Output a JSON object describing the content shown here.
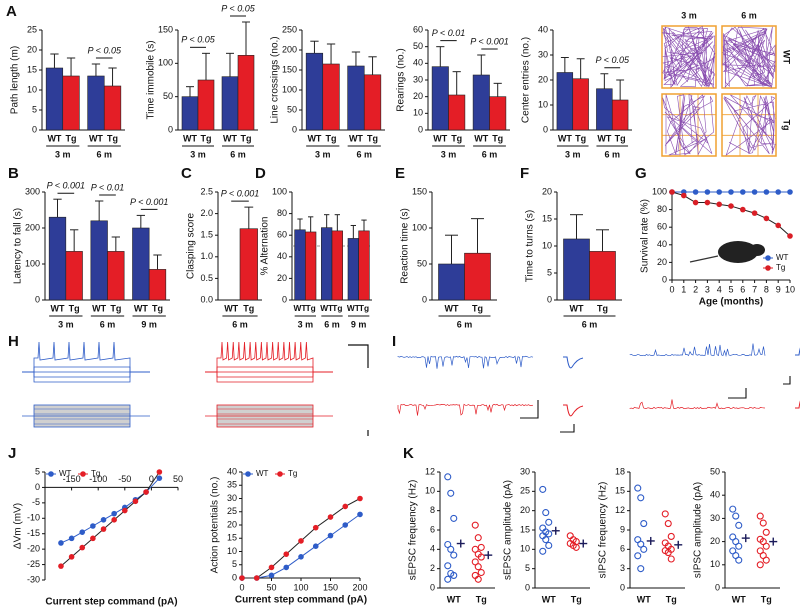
{
  "chart_data": [
    {
      "panel": "A",
      "type": "bar",
      "ylabel": "Path length (m)",
      "ylim": [
        0,
        25
      ],
      "yticks": [
        0,
        5,
        10,
        15,
        20,
        25
      ],
      "categories": [
        "3 m",
        "6 m"
      ],
      "series": [
        {
          "name": "WT",
          "color": "#2e3d98",
          "values": [
            15.5,
            13.5
          ],
          "errors": [
            3.5,
            3
          ]
        },
        {
          "name": "Tg",
          "color": "#e41e26",
          "values": [
            13.5,
            11
          ],
          "errors": [
            4.5,
            4.5
          ]
        }
      ],
      "annotations": [
        null,
        "P < 0.05"
      ]
    },
    {
      "type": "bar",
      "ylabel": "Time immobile (s)",
      "ylim": [
        0,
        150
      ],
      "yticks": [
        0,
        50,
        100,
        150
      ],
      "categories": [
        "3 m",
        "6 m"
      ],
      "series": [
        {
          "name": "WT",
          "color": "#2e3d98",
          "values": [
            50,
            80
          ],
          "errors": [
            15,
            35
          ]
        },
        {
          "name": "Tg",
          "color": "#e41e26",
          "values": [
            75,
            112
          ],
          "errors": [
            40,
            50
          ]
        }
      ],
      "annotations": [
        "P < 0.05",
        "P < 0.05"
      ]
    },
    {
      "type": "bar",
      "ylabel": "Line crossings (no.)",
      "ylim": [
        0,
        250
      ],
      "yticks": [
        0,
        50,
        100,
        150,
        200,
        250
      ],
      "categories": [
        "3 m",
        "6 m"
      ],
      "series": [
        {
          "name": "WT",
          "color": "#2e3d98",
          "values": [
            192,
            160
          ],
          "errors": [
            30,
            35
          ]
        },
        {
          "name": "Tg",
          "color": "#e41e26",
          "values": [
            165,
            138
          ],
          "errors": [
            50,
            45
          ]
        }
      ]
    },
    {
      "type": "bar",
      "ylabel": "Rearings (no.)",
      "ylim": [
        0,
        60
      ],
      "yticks": [
        0,
        10,
        20,
        30,
        40,
        50,
        60
      ],
      "categories": [
        "3 m",
        "6 m"
      ],
      "series": [
        {
          "name": "WT",
          "color": "#2e3d98",
          "values": [
            38,
            33
          ],
          "errors": [
            12,
            12
          ]
        },
        {
          "name": "Tg",
          "color": "#e41e26",
          "values": [
            21,
            20
          ],
          "errors": [
            14,
            8
          ]
        }
      ],
      "annotations": [
        "P < 0.01",
        "P < 0.001"
      ]
    },
    {
      "type": "bar",
      "ylabel": "Center entries (no.)",
      "ylim": [
        0,
        40
      ],
      "yticks": [
        0,
        10,
        20,
        30,
        40
      ],
      "categories": [
        "3 m",
        "6 m"
      ],
      "series": [
        {
          "name": "WT",
          "color": "#2e3d98",
          "values": [
            23,
            16.5
          ],
          "errors": [
            6,
            6
          ]
        },
        {
          "name": "Tg",
          "color": "#e41e26",
          "values": [
            20.5,
            12
          ],
          "errors": [
            8,
            8
          ]
        }
      ],
      "annotations": [
        null,
        "P < 0.05"
      ]
    },
    {
      "panel": "B",
      "type": "bar",
      "ylabel": "Latency to fall (s)",
      "ylim": [
        0,
        300
      ],
      "yticks": [
        0,
        100,
        200,
        300
      ],
      "categories": [
        "3 m",
        "6 m",
        "9 m"
      ],
      "series": [
        {
          "name": "WT",
          "color": "#2e3d98",
          "values": [
            230,
            220,
            200
          ],
          "errors": [
            50,
            55,
            35
          ]
        },
        {
          "name": "Tg",
          "color": "#e41e26",
          "values": [
            135,
            135,
            85
          ],
          "errors": [
            60,
            40,
            40
          ]
        }
      ],
      "annotations": [
        "P < 0.001",
        "P < 0.01",
        "P < 0.001"
      ]
    },
    {
      "panel": "C",
      "type": "bar",
      "ylabel": "Clasping score",
      "ylim": [
        0,
        2.5
      ],
      "yticks": [
        {
          "value": 0,
          "label": "0.0"
        },
        0.5,
        {
          "value": 1,
          "label": "1.0"
        },
        1.5,
        {
          "value": 2,
          "label": "2.0"
        },
        2.5
      ],
      "categories": [
        "6 m"
      ],
      "series": [
        {
          "name": "WT",
          "color": "#2e3d98",
          "values": [
            0
          ],
          "errors": [
            null
          ]
        },
        {
          "name": "Tg",
          "color": "#e41e26",
          "values": [
            1.65
          ],
          "errors": [
            0.5
          ]
        }
      ],
      "annotations": [
        "P < 0.001"
      ]
    },
    {
      "panel": "D",
      "type": "bar",
      "ylabel": "% Alternation",
      "ylim": [
        0,
        100
      ],
      "yticks": [
        0,
        20,
        40,
        60,
        80,
        100
      ],
      "categories": [
        "3 m",
        "6 m",
        "9 m"
      ],
      "reference_line": 50,
      "series": [
        {
          "name": "WT",
          "color": "#2e3d98",
          "values": [
            65,
            67,
            57
          ],
          "errors": [
            10,
            12,
            12
          ]
        },
        {
          "name": "Tg",
          "color": "#e41e26",
          "values": [
            63,
            64,
            64
          ],
          "errors": [
            14,
            15,
            10
          ]
        }
      ]
    },
    {
      "panel": "E",
      "type": "bar",
      "ylabel": "Reaction time (s)",
      "ylim": [
        0,
        150
      ],
      "yticks": [
        0,
        50,
        100,
        150
      ],
      "categories": [
        "6 m"
      ],
      "series": [
        {
          "name": "WT",
          "color": "#2e3d98",
          "values": [
            50
          ],
          "errors": [
            40
          ]
        },
        {
          "name": "Tg",
          "color": "#e41e26",
          "values": [
            65
          ],
          "errors": [
            48
          ]
        }
      ]
    },
    {
      "panel": "F",
      "type": "bar",
      "ylabel": "Time to turns (s)",
      "ylim": [
        0,
        20
      ],
      "yticks": [
        0,
        5,
        10,
        15,
        20
      ],
      "categories": [
        "6 m"
      ],
      "series": [
        {
          "name": "WT",
          "color": "#2e3d98",
          "values": [
            11.3
          ],
          "errors": [
            4.5
          ]
        },
        {
          "name": "Tg",
          "color": "#e41e26",
          "values": [
            9
          ],
          "errors": [
            4
          ]
        }
      ]
    },
    {
      "panel": "G",
      "type": "line",
      "ylabel": "Survival rate (%)",
      "xlabel": "Age (months)",
      "xlim": [
        0,
        10
      ],
      "xticks": [
        0,
        1,
        2,
        3,
        4,
        5,
        6,
        7,
        8,
        9,
        10
      ],
      "ylim": [
        0,
        100
      ],
      "yticks": [
        0,
        20,
        40,
        60,
        80,
        100
      ],
      "legend": "bottom-right",
      "x": [
        0,
        1,
        2,
        3,
        4,
        5,
        6,
        7,
        8,
        9,
        10
      ],
      "series": [
        {
          "name": "WT",
          "color": "#2e5cc8",
          "values": [
            100,
            100,
            100,
            100,
            100,
            100,
            100,
            100,
            100,
            100,
            100
          ]
        },
        {
          "name": "Tg",
          "color": "#d91e26",
          "values": [
            100,
            96,
            88,
            88,
            86,
            84,
            80,
            76,
            70,
            62,
            50
          ]
        }
      ]
    },
    {
      "panel": "J",
      "type": "line",
      "ylabel": "ΔVm (mV)",
      "xlabel": "Current step command (pA)",
      "xlim": [
        -200,
        50
      ],
      "xticks": [
        -150,
        -100,
        -50,
        0,
        50
      ],
      "ylim": [
        -30,
        5
      ],
      "yticks": [
        -30,
        -25,
        -20,
        -15,
        -10,
        -5,
        0,
        5
      ],
      "legend": "top-left",
      "x": [
        -170,
        -150,
        -130,
        -110,
        -90,
        -70,
        -50,
        -30,
        -10,
        15
      ],
      "series": [
        {
          "name": "WT",
          "color": "#2e5cc8",
          "values": [
            -18,
            -16.5,
            -14.5,
            -12.5,
            -10.5,
            -8.5,
            -6.5,
            -4,
            -1.5,
            3
          ]
        },
        {
          "name": "Tg",
          "color": "#e41e26",
          "values": [
            -25.5,
            -22.5,
            -19.5,
            -16.5,
            -13.5,
            -10.5,
            -7.5,
            -4.5,
            -1.5,
            5
          ]
        }
      ]
    },
    {
      "type": "line",
      "ylabel": "Action potentials (no.)",
      "xlabel": "Current step command (pA)",
      "xlim": [
        0,
        200
      ],
      "xticks": [
        0,
        50,
        100,
        150,
        200
      ],
      "ylim": [
        0,
        40
      ],
      "yticks": [
        0,
        5,
        10,
        15,
        20,
        25,
        30,
        35,
        40
      ],
      "legend": "top-left",
      "x": [
        0,
        25,
        50,
        75,
        100,
        125,
        150,
        175,
        200
      ],
      "series": [
        {
          "name": "WT",
          "color": "#2e5cc8",
          "values": [
            0,
            0,
            1,
            4,
            8,
            12,
            16,
            20,
            24
          ]
        },
        {
          "name": "Tg",
          "color": "#e41e26",
          "values": [
            0,
            0,
            4,
            9,
            14,
            19,
            23,
            27,
            30
          ]
        }
      ]
    },
    {
      "panel": "K",
      "type": "strip",
      "ylabel": "sEPSC frequency (Hz)",
      "ylim": [
        0,
        12
      ],
      "yticks": [
        0,
        2,
        4,
        6,
        8,
        10,
        12
      ],
      "categories": [
        "WT",
        "Tg"
      ],
      "groups": [
        {
          "color": "#2e5cc8",
          "values": [
            11.5,
            9.8,
            7.2,
            4.5,
            4,
            3.4,
            2.3,
            1.5,
            1.3,
            0.9
          ],
          "mean": 4.6
        },
        {
          "color": "#e41e26",
          "values": [
            6.5,
            5.2,
            4.2,
            4,
            3.5,
            3.2,
            2.7,
            2.2,
            1.6,
            1.3,
            0.9
          ],
          "mean": 3.4
        }
      ]
    },
    {
      "type": "strip",
      "ylabel": "sEPSC amplitude (pA)",
      "ylim": [
        0,
        30
      ],
      "yticks": [
        0,
        5,
        10,
        15,
        20,
        25,
        30
      ],
      "categories": [
        "WT",
        "Tg"
      ],
      "groups": [
        {
          "color": "#2e5cc8",
          "values": [
            25.5,
            19.5,
            17,
            15.5,
            14.5,
            14,
            13.5,
            12.5,
            11,
            9.5
          ],
          "mean": 14.8
        },
        {
          "color": "#e41e26",
          "values": [
            13.5,
            12.5,
            12,
            11.5,
            11,
            10.5
          ],
          "mean": 11.5
        }
      ]
    },
    {
      "type": "strip",
      "ylabel": "sIPSC frequency (Hz)",
      "ylim": [
        0,
        18
      ],
      "yticks": [
        0,
        3,
        6,
        9,
        12,
        15,
        18
      ],
      "categories": [
        "WT",
        "Tg"
      ],
      "groups": [
        {
          "color": "#2e5cc8",
          "values": [
            15.5,
            14,
            10,
            7.5,
            6.8,
            6,
            5,
            3
          ],
          "mean": 7.3
        },
        {
          "color": "#e41e26",
          "values": [
            11.5,
            10,
            8,
            7,
            6.5,
            6,
            5.8,
            5.5,
            4.5
          ],
          "mean": 6.7
        }
      ]
    },
    {
      "type": "strip",
      "ylabel": "sIPSC amplitude (pA)",
      "ylim": [
        0,
        50
      ],
      "yticks": [
        0,
        10,
        20,
        30,
        40,
        50
      ],
      "categories": [
        "WT",
        "Tg"
      ],
      "groups": [
        {
          "color": "#2e5cc8",
          "values": [
            34,
            31,
            27,
            22,
            20,
            18,
            16,
            14,
            12
          ],
          "mean": 21.5
        },
        {
          "color": "#e41e26",
          "values": [
            31,
            28,
            24,
            21,
            20,
            18,
            16,
            14,
            12,
            10
          ],
          "mean": 20
        }
      ]
    }
  ],
  "open_field": {
    "columns": [
      "3 m",
      "6 m"
    ],
    "rows": [
      "WT",
      "Tg"
    ]
  },
  "traces": {
    "panels": [
      "H",
      "I"
    ]
  }
}
